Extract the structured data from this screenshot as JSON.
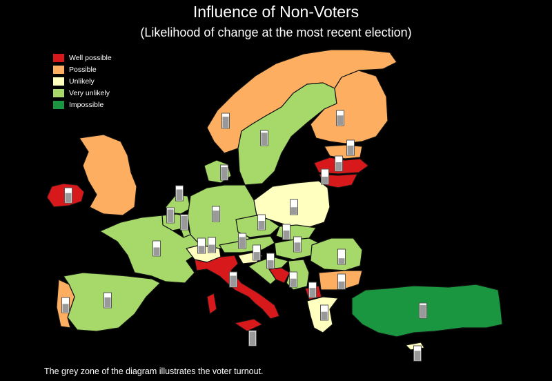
{
  "title": "Influence of Non-Voters",
  "subtitle": "(Likelihood of change at the most recent election)",
  "footnote": "The grey zone of the diagram illustrates the voter turnout.",
  "legend": [
    {
      "label": "Well possible",
      "color": "#d7191c",
      "key": "well"
    },
    {
      "label": "Possible",
      "color": "#fdae61",
      "key": "possible"
    },
    {
      "label": "Unlikely",
      "color": "#ffffbf",
      "key": "unlikely"
    },
    {
      "label": "Very unlikely",
      "color": "#a6d96a",
      "key": "very"
    },
    {
      "label": "Impossible",
      "color": "#1a9641",
      "key": "impossible"
    }
  ],
  "countries": [
    {
      "name": "norway",
      "category": "possible"
    },
    {
      "name": "sweden",
      "category": "very"
    },
    {
      "name": "finland",
      "category": "possible"
    },
    {
      "name": "estonia",
      "category": "possible"
    },
    {
      "name": "latvia",
      "category": "well"
    },
    {
      "name": "lithuania",
      "category": "well"
    },
    {
      "name": "ireland",
      "category": "well"
    },
    {
      "name": "uk",
      "category": "possible"
    },
    {
      "name": "denmark",
      "category": "very"
    },
    {
      "name": "netherlands",
      "category": "very"
    },
    {
      "name": "belgium",
      "category": "very"
    },
    {
      "name": "luxembourg",
      "category": "very"
    },
    {
      "name": "germany",
      "category": "very"
    },
    {
      "name": "poland",
      "category": "unlikely"
    },
    {
      "name": "czechia",
      "category": "very"
    },
    {
      "name": "slovakia",
      "category": "very"
    },
    {
      "name": "austria",
      "category": "very"
    },
    {
      "name": "hungary",
      "category": "very"
    },
    {
      "name": "france",
      "category": "very"
    },
    {
      "name": "switzerland",
      "category": "unlikely"
    },
    {
      "name": "spain",
      "category": "very"
    },
    {
      "name": "portugal",
      "category": "possible"
    },
    {
      "name": "italy",
      "category": "well"
    },
    {
      "name": "slovenia",
      "category": "unlikely"
    },
    {
      "name": "croatia",
      "category": "very"
    },
    {
      "name": "bosnia",
      "category": "well"
    },
    {
      "name": "serbia",
      "category": "very"
    },
    {
      "name": "romania",
      "category": "very"
    },
    {
      "name": "bulgaria",
      "category": "possible"
    },
    {
      "name": "macedonia",
      "category": "well"
    },
    {
      "name": "greece",
      "category": "unlikely"
    },
    {
      "name": "turkey",
      "category": "impossible"
    },
    {
      "name": "cyprus",
      "category": "unlikely"
    },
    {
      "name": "malta",
      "category": "well"
    }
  ],
  "turnout_markers": [
    {
      "name": "norway",
      "turnout": 0.77
    },
    {
      "name": "sweden",
      "turnout": 0.85
    },
    {
      "name": "finland",
      "turnout": 0.67
    },
    {
      "name": "estonia",
      "turnout": 0.64
    },
    {
      "name": "latvia",
      "turnout": 0.59
    },
    {
      "name": "lithuania",
      "turnout": 0.5
    },
    {
      "name": "denmark",
      "turnout": 0.86
    },
    {
      "name": "ireland",
      "turnout": 0.65
    },
    {
      "name": "uk",
      "turnout": 0.66
    },
    {
      "name": "netherlands",
      "turnout": 0.75
    },
    {
      "name": "belgium",
      "turnout": 0.89
    },
    {
      "name": "luxembourg",
      "turnout": 0.91
    },
    {
      "name": "germany",
      "turnout": 0.72
    },
    {
      "name": "poland",
      "turnout": 0.49
    },
    {
      "name": "czechia",
      "turnout": 0.59
    },
    {
      "name": "slovakia",
      "turnout": 0.59
    },
    {
      "name": "hungary",
      "turnout": 0.62
    },
    {
      "name": "austria",
      "turnout": 0.75
    },
    {
      "name": "switzerland",
      "turnout": 0.49
    },
    {
      "name": "slovenia",
      "turnout": 0.52
    },
    {
      "name": "croatia",
      "turnout": 0.54
    },
    {
      "name": "france",
      "turnout": 0.57
    },
    {
      "name": "spain",
      "turnout": 0.69
    },
    {
      "name": "portugal",
      "turnout": 0.58
    },
    {
      "name": "italy",
      "turnout": 0.75
    },
    {
      "name": "bosnia",
      "turnout": 0.54
    },
    {
      "name": "serbia",
      "turnout": 0.56
    },
    {
      "name": "romania",
      "turnout": 0.4
    },
    {
      "name": "bulgaria",
      "turnout": 0.51
    },
    {
      "name": "macedonia",
      "turnout": 0.63
    },
    {
      "name": "greece",
      "turnout": 0.56
    },
    {
      "name": "turkey",
      "turnout": 0.87
    },
    {
      "name": "cyprus",
      "turnout": 0.67
    },
    {
      "name": "malta",
      "turnout": 0.93
    }
  ]
}
